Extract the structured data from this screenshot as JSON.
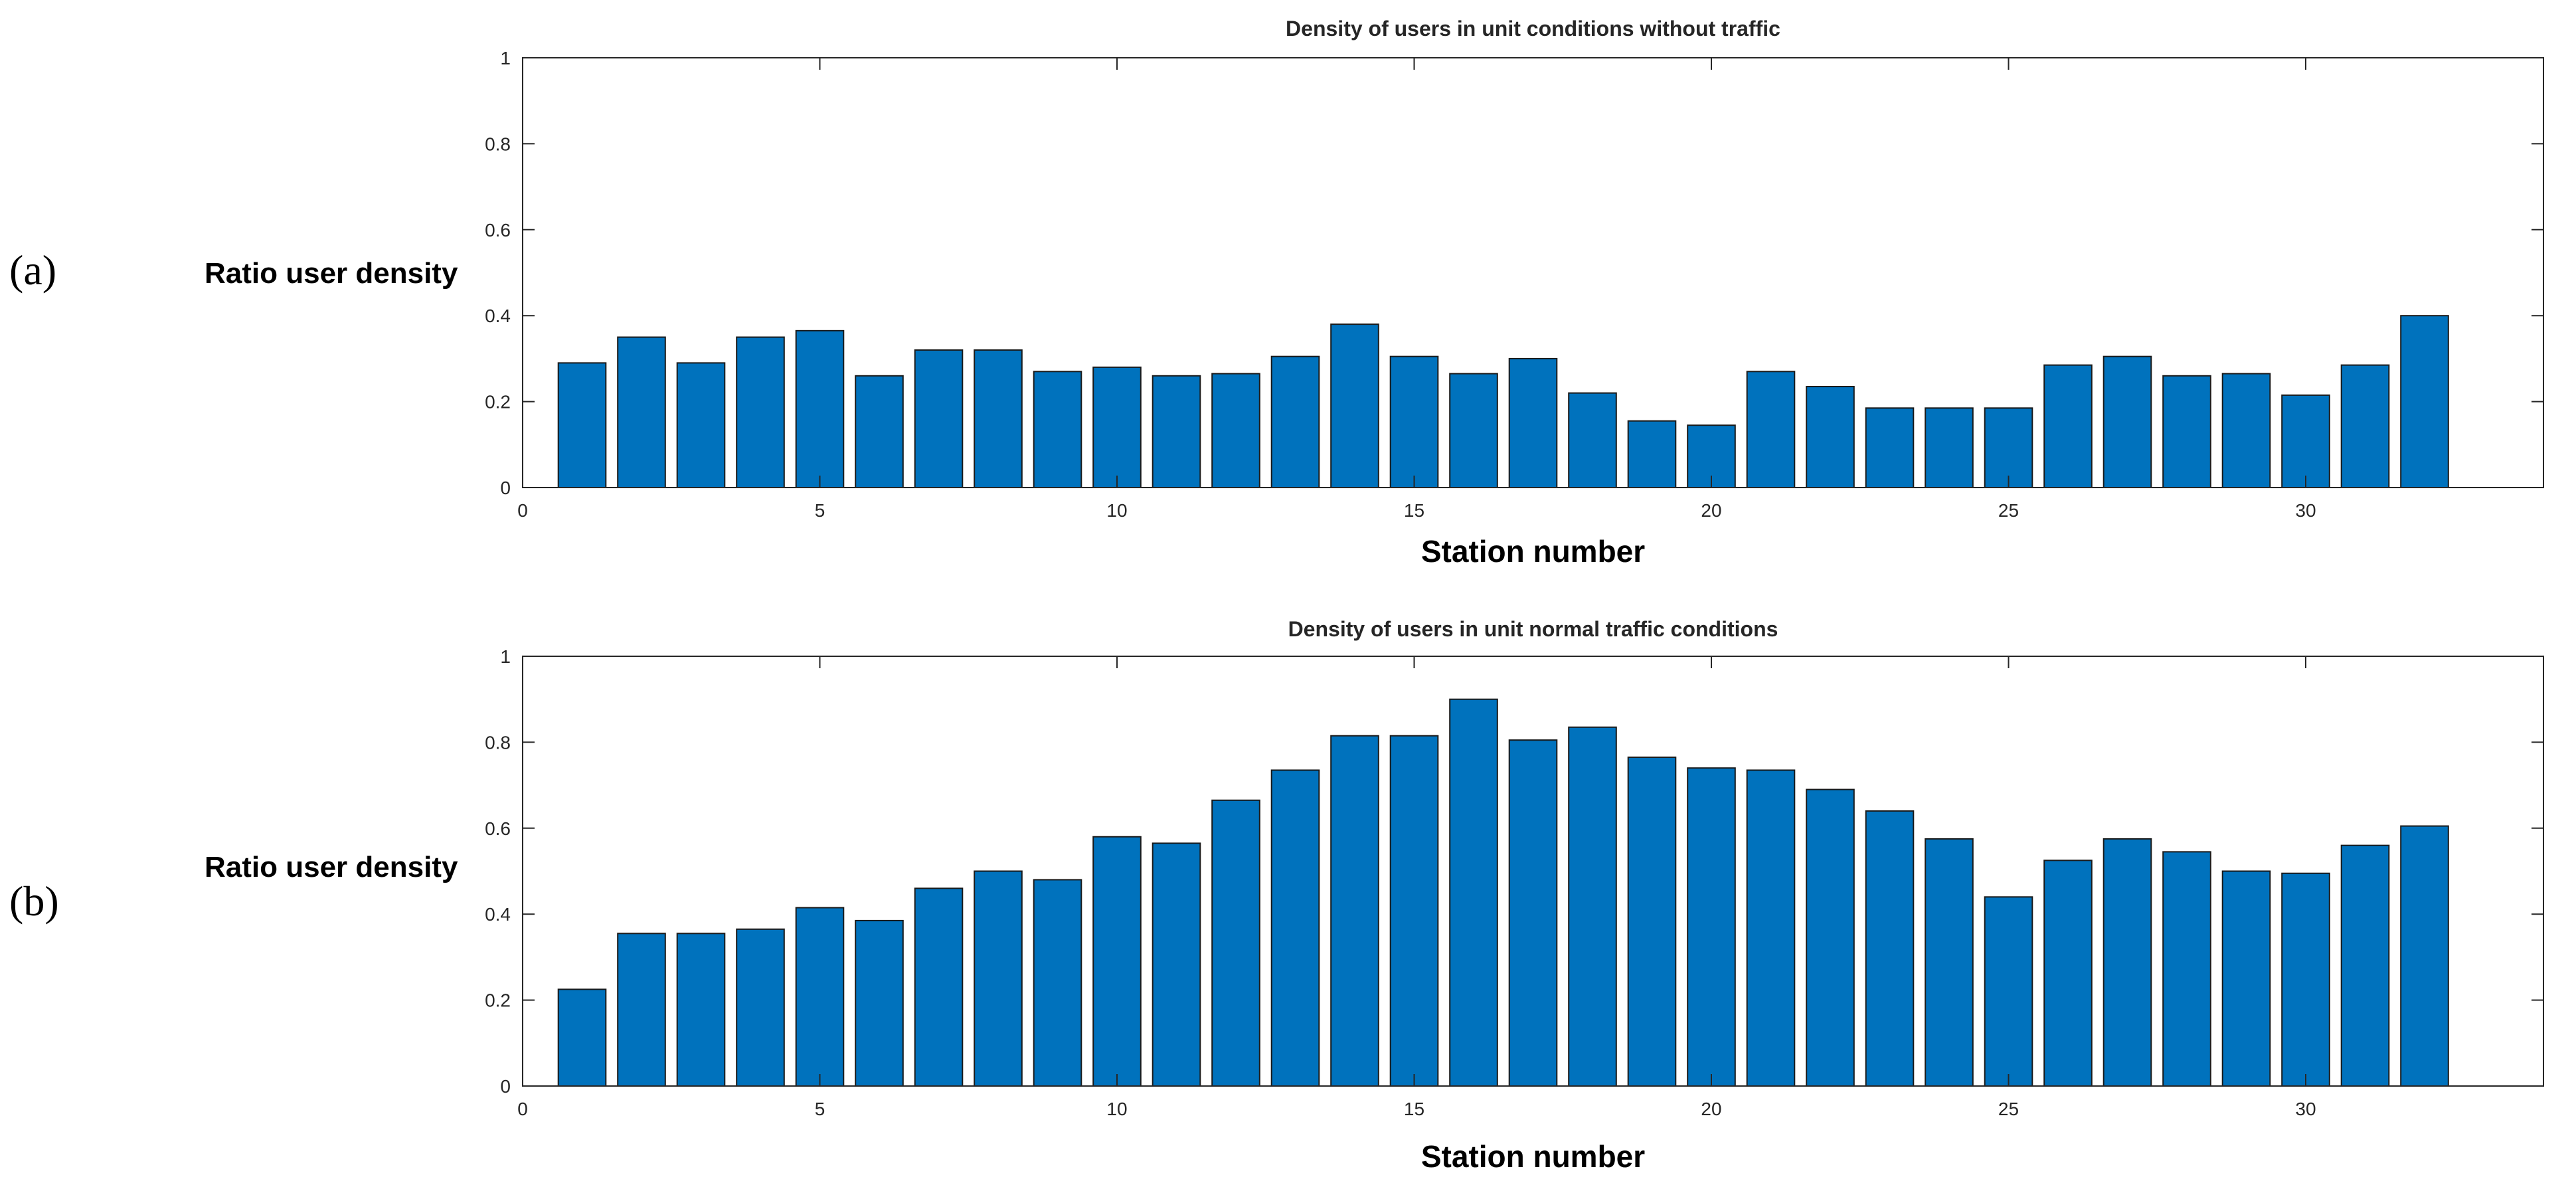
{
  "figure": {
    "panel_labels": [
      "(a)",
      "(b)"
    ]
  },
  "chart_data": [
    {
      "type": "bar",
      "panel": "(a)",
      "title": "Density of users in unit conditions without traffic",
      "xlabel": "Station number",
      "ylabel": "Ratio user density",
      "categories": [
        1,
        2,
        3,
        4,
        5,
        6,
        7,
        8,
        9,
        10,
        11,
        12,
        13,
        14,
        15,
        16,
        17,
        18,
        19,
        20,
        21,
        22,
        23,
        24,
        25,
        26,
        27,
        28,
        29,
        30,
        31,
        32
      ],
      "values": [
        0.29,
        0.35,
        0.29,
        0.35,
        0.365,
        0.26,
        0.32,
        0.32,
        0.27,
        0.28,
        0.26,
        0.265,
        0.305,
        0.38,
        0.305,
        0.265,
        0.3,
        0.22,
        0.155,
        0.145,
        0.27,
        0.235,
        0.185,
        0.185,
        0.185,
        0.285,
        0.305,
        0.26,
        0.265,
        0.215,
        0.285,
        0.4
      ],
      "xlim": [
        0,
        34
      ],
      "ylim": [
        0,
        1
      ],
      "xticks": [
        0,
        5,
        10,
        15,
        20,
        25,
        30
      ],
      "yticks": [
        0,
        0.2,
        0.4,
        0.6,
        0.8,
        1
      ],
      "bar_color": "#0072BD",
      "grid": false
    },
    {
      "type": "bar",
      "panel": "(b)",
      "title": "Density of users in unit normal traffic conditions",
      "xlabel": "Station number",
      "ylabel": "Ratio user density",
      "categories": [
        1,
        2,
        3,
        4,
        5,
        6,
        7,
        8,
        9,
        10,
        11,
        12,
        13,
        14,
        15,
        16,
        17,
        18,
        19,
        20,
        21,
        22,
        23,
        24,
        25,
        26,
        27,
        28,
        29,
        30,
        31,
        32
      ],
      "values": [
        0.225,
        0.355,
        0.355,
        0.365,
        0.415,
        0.385,
        0.46,
        0.5,
        0.48,
        0.58,
        0.565,
        0.665,
        0.735,
        0.815,
        0.815,
        0.9,
        0.805,
        0.835,
        0.765,
        0.74,
        0.735,
        0.69,
        0.64,
        0.575,
        0.44,
        0.525,
        0.575,
        0.545,
        0.5,
        0.495,
        0.56,
        0.605
      ],
      "xlim": [
        0,
        34
      ],
      "ylim": [
        0,
        1
      ],
      "xticks": [
        0,
        5,
        10,
        15,
        20,
        25,
        30
      ],
      "yticks": [
        0,
        0.2,
        0.4,
        0.6,
        0.8,
        1
      ],
      "bar_color": "#0072BD",
      "grid": false
    }
  ]
}
